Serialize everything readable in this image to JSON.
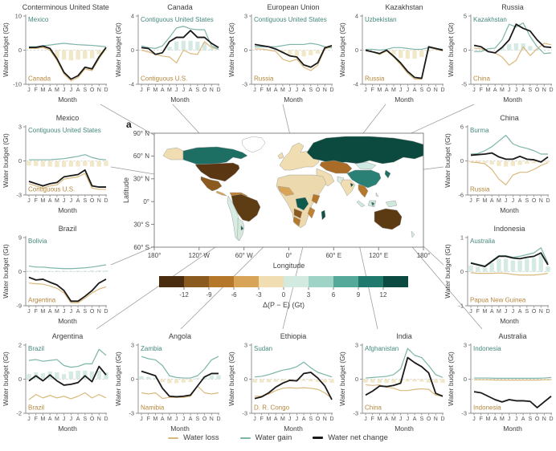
{
  "panel_label": "a",
  "months": [
    "J",
    "F",
    "M",
    "A",
    "M",
    "J",
    "J",
    "A",
    "S",
    "O",
    "N",
    "D"
  ],
  "axis": {
    "y_label": "Water budget (Gt)",
    "x_label": "Month"
  },
  "colors": {
    "gain_line": "#7db5a9",
    "gain_label": "#45897d",
    "loss_line": "#d9b97c",
    "loss_label": "#b5873d",
    "net_line": "#1a1a1a",
    "bar_gain": "#cfe6df",
    "bar_loss": "#efe3c0",
    "connector": "#9b9b9b"
  },
  "chart_data": [
    {
      "type": "line",
      "title": "Conterminous United States",
      "ylim": [
        -10,
        10
      ],
      "yticks": [
        10,
        0,
        -10
      ],
      "xlabel": "Month",
      "ylabel": "Water budget (Gt)",
      "annotations": {
        "gain": "Mexico",
        "loss": "Canada"
      },
      "gain": [
        1.0,
        1.0,
        1.3,
        1.5,
        1.8,
        2.0,
        1.8,
        1.6,
        1.5,
        1.4,
        1.2,
        1.0
      ],
      "loss": [
        0.5,
        0.5,
        0.8,
        0.0,
        -3.0,
        -7.0,
        -9.0,
        -8.0,
        -5.5,
        -6.0,
        -2.5,
        0.5
      ],
      "net": [
        0.8,
        0.8,
        1.2,
        0.5,
        -2.5,
        -6.5,
        -8.5,
        -7.5,
        -5.0,
        -5.5,
        -2.0,
        0.8
      ],
      "bars": [
        0,
        0,
        0,
        0,
        -2.2,
        -2.8,
        -3.0,
        -2.8,
        -2.5,
        -2.4,
        -1.2,
        0
      ]
    },
    {
      "type": "line",
      "title": "Canada",
      "ylim": [
        -4,
        4
      ],
      "yticks": [
        4,
        0,
        -4
      ],
      "xlabel": "Month",
      "ylabel": "Water budget (Gt)",
      "annotations": {
        "gain": "Contiguous United States",
        "loss": "Contiguous U.S."
      },
      "gain": [
        0.5,
        0.3,
        0.2,
        0.5,
        1.5,
        2.6,
        2.8,
        2.5,
        2.4,
        2.4,
        0.5,
        0.1
      ],
      "loss": [
        0.0,
        -0.2,
        -0.5,
        -0.7,
        -0.8,
        -1.5,
        0.0,
        -0.4,
        -0.5,
        1.0,
        0.3,
        0.1
      ],
      "net": [
        0.3,
        0.2,
        -0.5,
        -0.3,
        1.0,
        1.5,
        1.5,
        2.3,
        1.5,
        1.5,
        0.8,
        0.3
      ],
      "bars": [
        0,
        0,
        0,
        0,
        0.4,
        1.0,
        1.1,
        1.1,
        1.0,
        0.9,
        0.2,
        0
      ]
    },
    {
      "type": "line",
      "title": "European Union",
      "ylim": [
        -3,
        3
      ],
      "yticks": [
        3,
        0,
        -3
      ],
      "xlabel": "Month",
      "ylabel": "Water budget (Gt)",
      "annotations": {
        "gain": "Contiguous United States",
        "loss": "Russia"
      },
      "gain": [
        0.3,
        0.3,
        0.3,
        0.3,
        0.4,
        0.5,
        0.5,
        0.5,
        0.6,
        0.5,
        0.3,
        0.2
      ],
      "loss": [
        0.1,
        0.1,
        0.0,
        -0.1,
        -0.8,
        -1.0,
        -0.8,
        -1.5,
        -1.8,
        -1.3,
        0.1,
        0.3
      ],
      "net": [
        0.5,
        0.4,
        0.3,
        0.1,
        -0.2,
        -0.5,
        -0.6,
        -1.3,
        -1.5,
        -1.1,
        0.2,
        0.4
      ],
      "bars": [
        0,
        0,
        0,
        0,
        -0.3,
        -0.5,
        -0.5,
        -0.55,
        -0.45,
        -0.3,
        0,
        0
      ]
    },
    {
      "type": "line",
      "title": "Kazakhstan",
      "ylim": [
        -4,
        4
      ],
      "yticks": [
        4,
        0,
        -4
      ],
      "xlabel": "Month",
      "ylabel": "Water budget (Gt)",
      "annotations": {
        "gain": "Uzbekistan",
        "loss": "Russia"
      },
      "gain": [
        0.1,
        0.1,
        0.0,
        0.1,
        0.3,
        0.3,
        0.2,
        0.1,
        0.1,
        0.3,
        0.2,
        0.1
      ],
      "loss": [
        -0.1,
        -0.2,
        -0.5,
        -0.1,
        -0.8,
        -1.7,
        -2.7,
        -3.4,
        -3.4,
        0.3,
        0.1,
        -0.1
      ],
      "net": [
        0.0,
        -0.2,
        -0.4,
        0.0,
        -0.7,
        -1.5,
        -2.5,
        -3.2,
        -3.3,
        0.4,
        0.2,
        0.0
      ],
      "bars": [
        0,
        0,
        0,
        0,
        -0.5,
        -0.9,
        -1.0,
        -1.0,
        -0.8,
        -0.2,
        0,
        0
      ]
    },
    {
      "type": "line",
      "title": "Russia",
      "ylim": [
        -5,
        5
      ],
      "yticks": [
        5,
        0,
        -5
      ],
      "xlabel": "Month",
      "ylabel": "Water budget (Gt)",
      "annotations": {
        "gain": "Kazakhstan",
        "loss": "China"
      },
      "gain": [
        -0.2,
        -0.2,
        0.2,
        0.3,
        1.5,
        3.8,
        3.4,
        4.0,
        2.0,
        0.5,
        -0.5,
        -0.4
      ],
      "loss": [
        0.3,
        0.2,
        -0.2,
        -0.4,
        -1.0,
        -2.2,
        -1.5,
        0.5,
        -0.8,
        0.2,
        1.0,
        0.8
      ],
      "net": [
        0.7,
        0.5,
        -0.2,
        -0.4,
        0.4,
        1.5,
        3.8,
        3.2,
        2.8,
        1.5,
        0.5,
        0.4
      ],
      "bars": [
        0,
        0,
        0,
        0,
        0.4,
        0.9,
        1.0,
        1.0,
        0.6,
        0.2,
        0,
        0
      ]
    },
    {
      "type": "line",
      "title": "Mexico",
      "ylim": [
        -3,
        3
      ],
      "yticks": [
        3,
        0,
        -3
      ],
      "xlabel": "Month",
      "ylabel": "Water budget (Gt)",
      "annotations": {
        "gain": "Contiguous United States",
        "loss": "Contiguous U.S."
      },
      "gain": [
        0.1,
        0.1,
        0.1,
        0.1,
        0.15,
        0.2,
        0.3,
        0.4,
        0.55,
        0.3,
        0.15,
        0.1
      ],
      "loss": [
        -2.0,
        -2.2,
        -2.4,
        -2.2,
        -2.1,
        -1.6,
        -1.5,
        -1.4,
        -1.1,
        -2.4,
        -2.5,
        -2.5
      ],
      "net": [
        -1.8,
        -2.0,
        -2.2,
        -2.0,
        -1.9,
        -1.4,
        -1.3,
        -1.2,
        -0.8,
        -2.2,
        -2.3,
        -2.3
      ],
      "bars": [
        -0.4,
        -0.45,
        -0.5,
        -0.5,
        -0.55,
        -0.55,
        -0.5,
        -0.5,
        -0.45,
        -0.5,
        -0.5,
        -0.45
      ]
    },
    {
      "type": "line",
      "title": "Brazil",
      "ylim": [
        -9,
        9
      ],
      "yticks": [
        9,
        0,
        -9
      ],
      "xlabel": "Month",
      "ylabel": "Water budget (Gt)",
      "annotations": {
        "gain": "Bolivia",
        "loss": "Argentina"
      },
      "gain": [
        1.5,
        1.2,
        1.2,
        1.0,
        0.9,
        0.8,
        0.8,
        0.9,
        1.0,
        1.2,
        1.5,
        1.8
      ],
      "loss": [
        -3.0,
        -3.2,
        -3.3,
        -3.8,
        -4.4,
        -5.6,
        -8.2,
        -8.2,
        -7.0,
        -5.6,
        -4.6,
        -4.0
      ],
      "net": [
        -1.5,
        -2.2,
        -2.0,
        -2.8,
        -3.5,
        -5.0,
        -7.8,
        -7.8,
        -6.5,
        -5.0,
        -3.0,
        -2.0
      ],
      "bars": [
        0.25,
        0.25,
        0.2,
        0.2,
        0.25,
        0.25,
        0.2,
        0.25,
        0.25,
        0.3,
        0.3,
        0.3
      ]
    },
    {
      "type": "line",
      "title": "China",
      "ylim": [
        -6,
        6
      ],
      "yticks": [
        6,
        0,
        -6
      ],
      "xlabel": "Month",
      "ylabel": "Water budget (Gt)",
      "annotations": {
        "gain": "Burma",
        "loss": "Russia"
      },
      "gain": [
        1.2,
        1.3,
        1.8,
        2.5,
        3.5,
        4.5,
        3.0,
        2.5,
        2.2,
        1.8,
        1.2,
        1.2
      ],
      "loss": [
        -0.2,
        -0.3,
        -0.5,
        -1.5,
        -3.2,
        -4.2,
        -2.5,
        -2.0,
        -2.0,
        -1.5,
        -0.8,
        -0.3
      ],
      "net": [
        1.0,
        1.1,
        1.2,
        1.4,
        0.7,
        0.3,
        0.3,
        0.8,
        0.3,
        0.2,
        -0.2,
        0.7
      ],
      "bars": [
        -0.3,
        -0.35,
        -0.4,
        -0.6,
        -0.9,
        -1.0,
        -0.9,
        -0.7,
        -0.5,
        -0.4,
        -0.3,
        -0.2
      ]
    },
    {
      "type": "line",
      "title": "Indonesia",
      "ylim": [
        -1,
        1
      ],
      "yticks": [
        1,
        0,
        -1
      ],
      "xlabel": "Month",
      "ylabel": "Water budget (Gt)",
      "annotations": {
        "gain": "Australia",
        "loss": "Papua New Guinea"
      },
      "gain": [
        0.27,
        0.22,
        0.17,
        0.32,
        0.47,
        0.47,
        0.42,
        0.45,
        0.5,
        0.55,
        0.7,
        0.25
      ],
      "loss": [
        -0.03,
        -0.05,
        -0.05,
        -0.05,
        -0.04,
        -0.05,
        -0.08,
        -0.1,
        -0.1,
        -0.1,
        -0.08,
        -0.05
      ],
      "net": [
        0.25,
        0.2,
        0.15,
        0.3,
        0.45,
        0.45,
        0.4,
        0.38,
        0.42,
        0.45,
        0.55,
        0.2
      ],
      "bars": [
        0.18,
        0.15,
        0.12,
        0.25,
        0.38,
        0.38,
        0.33,
        0.33,
        0.38,
        0.4,
        0.5,
        0.15
      ]
    },
    {
      "type": "line",
      "title": "Argentina",
      "ylim": [
        -2,
        2
      ],
      "yticks": [
        2,
        0,
        -2
      ],
      "xlabel": "Month",
      "ylabel": "Water budget (Gt)",
      "annotations": {
        "gain": "Brazil",
        "loss": "Brazil"
      },
      "gain": [
        1.1,
        1.15,
        1.05,
        1.1,
        1.15,
        0.8,
        0.7,
        0.75,
        0.9,
        0.9,
        1.75,
        1.4
      ],
      "loss": [
        -1.2,
        -0.9,
        -1.1,
        -0.95,
        -1.1,
        -1.0,
        -1.15,
        -1.0,
        -0.8,
        -1.1,
        -0.9,
        -1.1
      ],
      "net": [
        -0.1,
        0.2,
        -0.1,
        0.25,
        -0.1,
        -0.35,
        -0.3,
        -0.2,
        0.2,
        -0.15,
        0.75,
        0.25
      ],
      "bars": [
        0.3,
        0.4,
        0.35,
        0.45,
        0.4,
        0.3,
        0.45,
        0.5,
        0.5,
        0.45,
        0.5,
        0.4
      ]
    },
    {
      "type": "line",
      "title": "Angola",
      "ylim": [
        -3,
        3
      ],
      "yticks": [
        3,
        0,
        -3
      ],
      "xlabel": "Month",
      "ylabel": "Water budget (Gt)",
      "annotations": {
        "gain": "Zambia",
        "loss": "Namibia"
      },
      "gain": [
        2.0,
        1.8,
        1.7,
        1.2,
        0.3,
        0.15,
        0.1,
        0.1,
        0.3,
        0.9,
        1.7,
        2.0
      ],
      "loss": [
        -1.2,
        -1.3,
        -1.2,
        -1.7,
        -1.6,
        -1.6,
        -1.6,
        -1.5,
        -0.6,
        -1.2,
        -1.3,
        -1.2
      ],
      "net": [
        0.7,
        0.5,
        0.3,
        -0.8,
        -1.5,
        -1.55,
        -1.5,
        -1.4,
        -0.6,
        0.2,
        0.5,
        0.5
      ],
      "bars": [
        0.25,
        0.2,
        0.15,
        -0.25,
        -0.35,
        -0.35,
        -0.3,
        -0.25,
        0.1,
        0.25,
        0.35,
        0.35
      ]
    },
    {
      "type": "line",
      "title": "Ethiopia",
      "ylim": [
        -3,
        3
      ],
      "yticks": [
        3,
        0,
        -3
      ],
      "xlabel": "Month",
      "ylabel": "Water budget (Gt)",
      "annotations": {
        "gain": "Sudan",
        "loss": "D. R. Congo"
      },
      "gain": [
        0.2,
        0.25,
        0.4,
        0.6,
        0.8,
        0.9,
        1.1,
        1.5,
        1.0,
        0.6,
        0.4,
        0.2
      ],
      "loss": [
        -1.5,
        -1.5,
        -1.3,
        -1.0,
        -0.8,
        -0.75,
        -0.8,
        -0.75,
        -0.8,
        -0.9,
        -1.2,
        -1.7
      ],
      "net": [
        -1.7,
        -1.55,
        -1.2,
        -0.7,
        -0.35,
        -0.1,
        -0.15,
        0.5,
        0.6,
        0.1,
        -0.6,
        -1.8
      ],
      "bars": [
        -0.3,
        -0.3,
        -0.28,
        -0.22,
        -0.2,
        -0.2,
        -0.18,
        -0.15,
        -0.2,
        -0.25,
        -0.3,
        -0.32
      ]
    },
    {
      "type": "line",
      "title": "India",
      "ylim": [
        -3,
        3
      ],
      "yticks": [
        3,
        0,
        -3
      ],
      "xlabel": "Month",
      "ylabel": "Water budget (Gt)",
      "annotations": {
        "gain": "Afghanistan",
        "loss": "China"
      },
      "gain": [
        0.1,
        0.15,
        0.2,
        0.25,
        0.4,
        0.9,
        2.7,
        2.1,
        1.9,
        1.2,
        0.4,
        0.15
      ],
      "loss": [
        -0.5,
        -0.55,
        -0.5,
        -0.7,
        -0.8,
        -1.0,
        -1.0,
        -0.9,
        -0.85,
        -0.9,
        -1.4,
        -1.5
      ],
      "net": [
        -1.4,
        -1.05,
        -0.6,
        -0.65,
        -0.55,
        -0.35,
        1.9,
        1.45,
        1.1,
        0.55,
        -1.25,
        -1.5
      ],
      "bars": [
        -0.3,
        -0.3,
        -0.3,
        -0.32,
        -0.32,
        -0.3,
        -0.2,
        -0.2,
        -0.22,
        -0.3,
        -0.32,
        -0.32
      ]
    },
    {
      "type": "line",
      "title": "Australia",
      "ylim": [
        -3,
        3
      ],
      "yticks": [
        3,
        0,
        -3
      ],
      "xlabel": "Month",
      "ylabel": "Water budget (Gt)",
      "annotations": {
        "gain": "Indonesia",
        "loss": "Indonesia"
      },
      "gain": [
        0.1,
        0.1,
        0.1,
        0.08,
        0.08,
        0.08,
        0.08,
        0.08,
        0.08,
        0.08,
        0.1,
        0.15
      ],
      "loss": [
        -0.05,
        -0.05,
        -0.05,
        -0.08,
        -0.08,
        -0.08,
        -0.08,
        -0.08,
        -0.08,
        -0.08,
        -0.05,
        -0.05
      ],
      "net": [
        -1.1,
        -1.2,
        -1.5,
        -1.8,
        -2.0,
        -1.8,
        -1.9,
        -1.9,
        -1.95,
        -2.5,
        -2.0,
        -1.5
      ],
      "bars": [
        0,
        0,
        0,
        0,
        0,
        0,
        0,
        0,
        0,
        0,
        0,
        0
      ]
    }
  ],
  "map": {
    "x_label": "Longitude",
    "y_label": "Latitude",
    "lat_ticks": [
      "90° N",
      "60° N",
      "30° N",
      "0°",
      "30° S",
      "60° S"
    ],
    "lon_ticks": [
      "180°",
      "120° W",
      "60° W",
      "0°",
      "60° E",
      "120° E",
      "180°"
    ],
    "regions": {
      "alaska": "#f0ddb2",
      "canada": "#1d6e63",
      "greenland": "#ffffff",
      "conterminous-us": "#5a3712",
      "mexico": "#8a5a1e",
      "central-america": "#d8a558",
      "colombia-venezuela": "#c08232",
      "brazil": "#5f3d14",
      "andes-chile": "#d7ece2",
      "argentina": "#d3e9dc",
      "argentina-spot": "#0f5a4c",
      "europe": "#f0ddb2",
      "uk": "#f0ddb2",
      "russia": "#0c4a40",
      "kazakhstan": "#a96b28",
      "mongolia": "#cfeae2",
      "china": "#2a8075",
      "middle-east": "#f0ddb2",
      "india": "#f0ddb2",
      "india-spot": "#134f44",
      "pakistan": "#dcebe0",
      "se-asia": "#b5772a",
      "sumatra": "#cfe9dd",
      "borneo": "#cfe9dd",
      "borneo-spot": "#1f6f63",
      "new-guinea": "#cfe9dd",
      "philippines": "#cfe9dd",
      "japan": "#1f6f63",
      "africa": "#ecd9ad",
      "west-africa": "#d8a558",
      "dr-congo": "#0f5a4c",
      "east-africa": "#b5772a",
      "angola": "#8a5a1e",
      "namibia": "#b5772a",
      "mozambique": "#c08232",
      "madagascar": "#134f44",
      "australia": "#5c3a12",
      "new-zealand": "#d7ece2"
    }
  },
  "colorbar": {
    "label": "Δ(P − E) (Gt)",
    "ticks": [
      "-12",
      "-9",
      "-6",
      "-3",
      "0",
      "3",
      "6",
      "9",
      "12"
    ],
    "colors": [
      "#4a2d0e",
      "#8a5a1e",
      "#b5772a",
      "#d8a558",
      "#f0ddb2",
      "#d2eadf",
      "#9ed3c6",
      "#55a99a",
      "#1f7a6d",
      "#0b4a40"
    ]
  },
  "legend": {
    "items": [
      {
        "label": "Water loss",
        "color": "#d9b97c"
      },
      {
        "label": "Water gain",
        "color": "#7db5a9"
      },
      {
        "label": "Water net change",
        "color": "#1a1a1a"
      }
    ]
  }
}
